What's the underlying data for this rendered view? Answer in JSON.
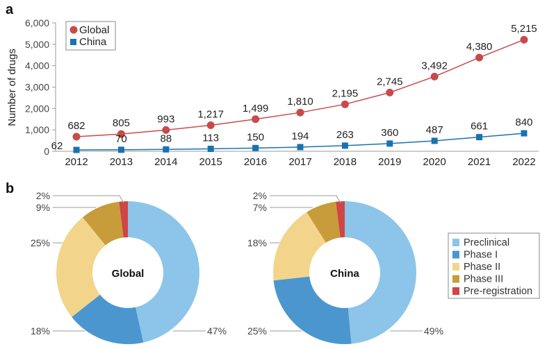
{
  "chart_data": [
    {
      "type": "line",
      "panel_label": "a",
      "ylabel": "Number of drugs",
      "ylim": [
        0,
        6000
      ],
      "yticks": [
        "0",
        "1,000",
        "2,000",
        "3,000",
        "4,000",
        "5,000",
        "6,000"
      ],
      "categories": [
        "2012",
        "2013",
        "2014",
        "2015",
        "2016",
        "2017",
        "2018",
        "2019",
        "2020",
        "2021",
        "2022"
      ],
      "legend_position": "top-left",
      "series": [
        {
          "name": "Global",
          "marker": "circle",
          "color": "#c94a4a",
          "values": [
            682,
            805,
            993,
            1217,
            1499,
            1810,
            2195,
            2745,
            3492,
            4380,
            5215
          ],
          "labels": [
            "682",
            "805",
            "993",
            "1,217",
            "1,499",
            "1,810",
            "2,195",
            "2,745",
            "3,492",
            "4,380",
            "5,215"
          ]
        },
        {
          "name": "China",
          "marker": "square",
          "color": "#1a72b0",
          "values": [
            62,
            70,
            88,
            113,
            150,
            194,
            263,
            360,
            487,
            661,
            840
          ],
          "labels": [
            "62",
            "70",
            "88",
            "113",
            "150",
            "194",
            "263",
            "360",
            "487",
            "661",
            "840"
          ]
        }
      ]
    },
    {
      "type": "pie",
      "panel_label": "b",
      "categories": [
        "Preclinical",
        "Phase I",
        "Phase II",
        "Phase III",
        "Pre-registration"
      ],
      "colors": [
        "#8cc5e9",
        "#4b96cf",
        "#f2d58b",
        "#c89c3b",
        "#d04545"
      ],
      "legend_position": "right",
      "donuts": [
        {
          "name": "Global",
          "values": [
            47,
            18,
            25,
            9,
            2
          ],
          "labels": [
            "47%",
            "18%",
            "25%",
            "9%",
            "2%"
          ]
        },
        {
          "name": "China",
          "values": [
            49,
            25,
            18,
            7,
            2
          ],
          "labels": [
            "49%",
            "25%",
            "18%",
            "7%",
            "2%"
          ]
        }
      ]
    }
  ]
}
